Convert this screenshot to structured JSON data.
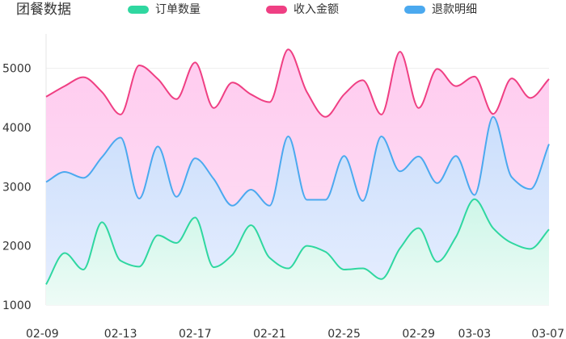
{
  "chart_title": "团餐数据",
  "legend": [
    {
      "label": "订单数量",
      "color": "#2fd7a0"
    },
    {
      "label": "收入金额",
      "color": "#ef3f83"
    },
    {
      "label": "退款明细",
      "color": "#4ba9ef"
    }
  ],
  "chart_data": {
    "type": "area",
    "title": "团餐数据",
    "xlabel": "",
    "ylabel": "",
    "ylim": [
      1000,
      5500
    ],
    "yticks": [
      1000,
      2000,
      3000,
      4000,
      5000
    ],
    "x": [
      "02-09",
      "02-10",
      "02-11",
      "02-12",
      "02-13",
      "02-14",
      "02-15",
      "02-16",
      "02-17",
      "02-18",
      "02-19",
      "02-20",
      "02-21",
      "02-22",
      "02-23",
      "02-24",
      "02-25",
      "02-26",
      "02-27",
      "02-28",
      "02-29",
      "03-01",
      "03-02",
      "03-03",
      "03-04",
      "03-05",
      "03-06",
      "03-07"
    ],
    "xticks": [
      "02-09",
      "02-13",
      "02-17",
      "02-21",
      "02-25",
      "02-29",
      "03-03",
      "03-07"
    ],
    "grid": true,
    "legend_position": "top",
    "series": [
      {
        "name": "订单数量",
        "color": "#2fd7a0",
        "fill": "#e0fbf1",
        "values": [
          1350,
          1880,
          1600,
          2400,
          1750,
          1650,
          2180,
          2050,
          2480,
          1640,
          1850,
          2350,
          1800,
          1620,
          2000,
          1900,
          1600,
          1620,
          1440,
          1960,
          2300,
          1730,
          2150,
          2790,
          2300,
          2050,
          1950,
          2280
        ]
      },
      {
        "name": "退款明细",
        "color": "#4ba9ef",
        "fill": "#d7e8fd",
        "values": [
          3080,
          3250,
          3150,
          3500,
          3830,
          2800,
          3680,
          2830,
          3480,
          3130,
          2680,
          2950,
          2680,
          3850,
          2780,
          2780,
          3520,
          2760,
          3850,
          3260,
          3510,
          3060,
          3520,
          2860,
          4180,
          3160,
          2960,
          3720
        ]
      },
      {
        "name": "收入金额",
        "color": "#ef3f83",
        "fill": "#fdd3f1",
        "values": [
          4520,
          4700,
          4850,
          4600,
          4220,
          5050,
          4820,
          4480,
          5100,
          4330,
          4760,
          4560,
          4430,
          5320,
          4600,
          4180,
          4560,
          4800,
          4220,
          5280,
          4330,
          4990,
          4700,
          4860,
          4230,
          4830,
          4500,
          4820
        ]
      }
    ]
  }
}
